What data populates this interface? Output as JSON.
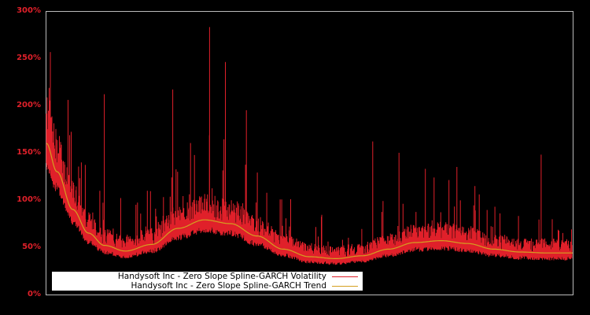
{
  "chart_data": {
    "type": "line",
    "title": "",
    "xlabel": "",
    "ylabel": "",
    "ylim": [
      0,
      300
    ],
    "yticks": [
      "0%",
      "50%",
      "100%",
      "150%",
      "200%",
      "250%",
      "300%"
    ],
    "grid": false,
    "legend_position": "lower left",
    "series": [
      {
        "name": "Handysoft Inc - Zero Slope Spline-GARCH Volatility",
        "color": "#e0202a",
        "approx_points_pct": [
          [
            0,
            175
          ],
          [
            0.02,
            140
          ],
          [
            0.05,
            80
          ],
          [
            0.08,
            55
          ],
          [
            0.11,
            47
          ],
          [
            0.15,
            45
          ],
          [
            0.2,
            55
          ],
          [
            0.25,
            70
          ],
          [
            0.3,
            75
          ],
          [
            0.35,
            70
          ],
          [
            0.4,
            60
          ],
          [
            0.45,
            45
          ],
          [
            0.5,
            38
          ],
          [
            0.55,
            37
          ],
          [
            0.6,
            40
          ],
          [
            0.65,
            45
          ],
          [
            0.7,
            50
          ],
          [
            0.75,
            52
          ],
          [
            0.8,
            50
          ],
          [
            0.85,
            45
          ],
          [
            0.9,
            42
          ],
          [
            0.95,
            40
          ],
          [
            1.0,
            40
          ]
        ],
        "spikes_pct": [
          [
            0.11,
            212
          ],
          [
            0.24,
            217
          ],
          [
            0.31,
            283
          ],
          [
            0.34,
            246
          ],
          [
            0.38,
            195
          ],
          [
            0.62,
            162
          ],
          [
            0.67,
            150
          ],
          [
            0.72,
            133
          ],
          [
            0.78,
            135
          ],
          [
            0.94,
            148
          ]
        ]
      },
      {
        "name": "Handysoft Inc - Zero Slope Spline-GARCH Trend",
        "color": "#d4a020",
        "approx_points_pct": [
          [
            0,
            160
          ],
          [
            0.02,
            130
          ],
          [
            0.05,
            90
          ],
          [
            0.08,
            65
          ],
          [
            0.11,
            52
          ],
          [
            0.15,
            46
          ],
          [
            0.2,
            53
          ],
          [
            0.25,
            70
          ],
          [
            0.3,
            79
          ],
          [
            0.35,
            75
          ],
          [
            0.4,
            62
          ],
          [
            0.45,
            48
          ],
          [
            0.5,
            40
          ],
          [
            0.55,
            38
          ],
          [
            0.6,
            41
          ],
          [
            0.65,
            48
          ],
          [
            0.7,
            55
          ],
          [
            0.75,
            57
          ],
          [
            0.8,
            54
          ],
          [
            0.85,
            48
          ],
          [
            0.9,
            45
          ],
          [
            0.95,
            44
          ],
          [
            1.0,
            44
          ]
        ]
      }
    ]
  },
  "legend": {
    "volatility_label": "Handysoft Inc - Zero Slope Spline-GARCH Volatility",
    "trend_label": "Handysoft Inc - Zero Slope Spline-GARCH Trend"
  },
  "axis": {
    "y0": "0%",
    "y50": "50%",
    "y100": "100%",
    "y150": "150%",
    "y200": "200%",
    "y250": "250%",
    "y300": "300%"
  }
}
